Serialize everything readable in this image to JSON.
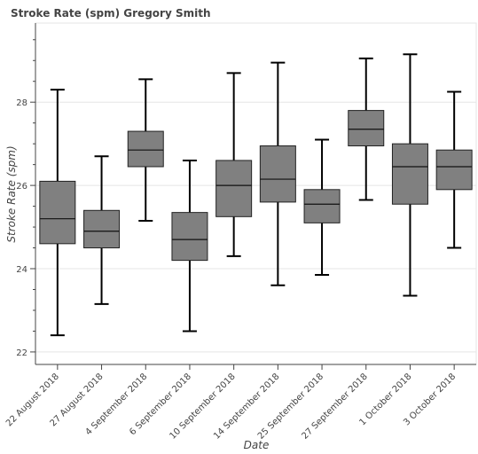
{
  "chart_data": {
    "type": "box",
    "title": "Stroke Rate (spm)  Gregory Smith",
    "xlabel": "Date",
    "ylabel": "Stroke Rate (spm)",
    "ylim": [
      21.7,
      29.9
    ],
    "yticks": [
      22,
      24,
      26,
      28
    ],
    "grid": true,
    "box_color": "#808080",
    "categories": [
      "22 August 2018",
      "27 August 2018",
      "4 September 2018",
      "6 September 2018",
      "10 September 2018",
      "14 September 2018",
      "25 September 2018",
      "27 September 2018",
      "1 October 2018",
      "3 October 2018"
    ],
    "boxes": [
      {
        "whisker_low": 22.4,
        "q1": 24.6,
        "median": 25.2,
        "q3": 26.1,
        "whisker_high": 28.3
      },
      {
        "whisker_low": 23.15,
        "q1": 24.5,
        "median": 24.9,
        "q3": 25.4,
        "whisker_high": 26.7
      },
      {
        "whisker_low": 25.15,
        "q1": 26.45,
        "median": 26.85,
        "q3": 27.3,
        "whisker_high": 28.55
      },
      {
        "whisker_low": 22.5,
        "q1": 24.2,
        "median": 24.7,
        "q3": 25.35,
        "whisker_high": 26.6
      },
      {
        "whisker_low": 24.3,
        "q1": 25.25,
        "median": 26.0,
        "q3": 26.6,
        "whisker_high": 28.7
      },
      {
        "whisker_low": 23.6,
        "q1": 25.6,
        "median": 26.15,
        "q3": 26.95,
        "whisker_high": 28.95
      },
      {
        "whisker_low": 23.85,
        "q1": 25.1,
        "median": 25.55,
        "q3": 25.9,
        "whisker_high": 27.1
      },
      {
        "whisker_low": 25.65,
        "q1": 26.95,
        "median": 27.35,
        "q3": 27.8,
        "whisker_high": 29.05
      },
      {
        "whisker_low": 23.35,
        "q1": 25.55,
        "median": 26.45,
        "q3": 27.0,
        "whisker_high": 29.15
      },
      {
        "whisker_low": 24.5,
        "q1": 25.9,
        "median": 26.45,
        "q3": 26.85,
        "whisker_high": 28.25
      }
    ]
  }
}
